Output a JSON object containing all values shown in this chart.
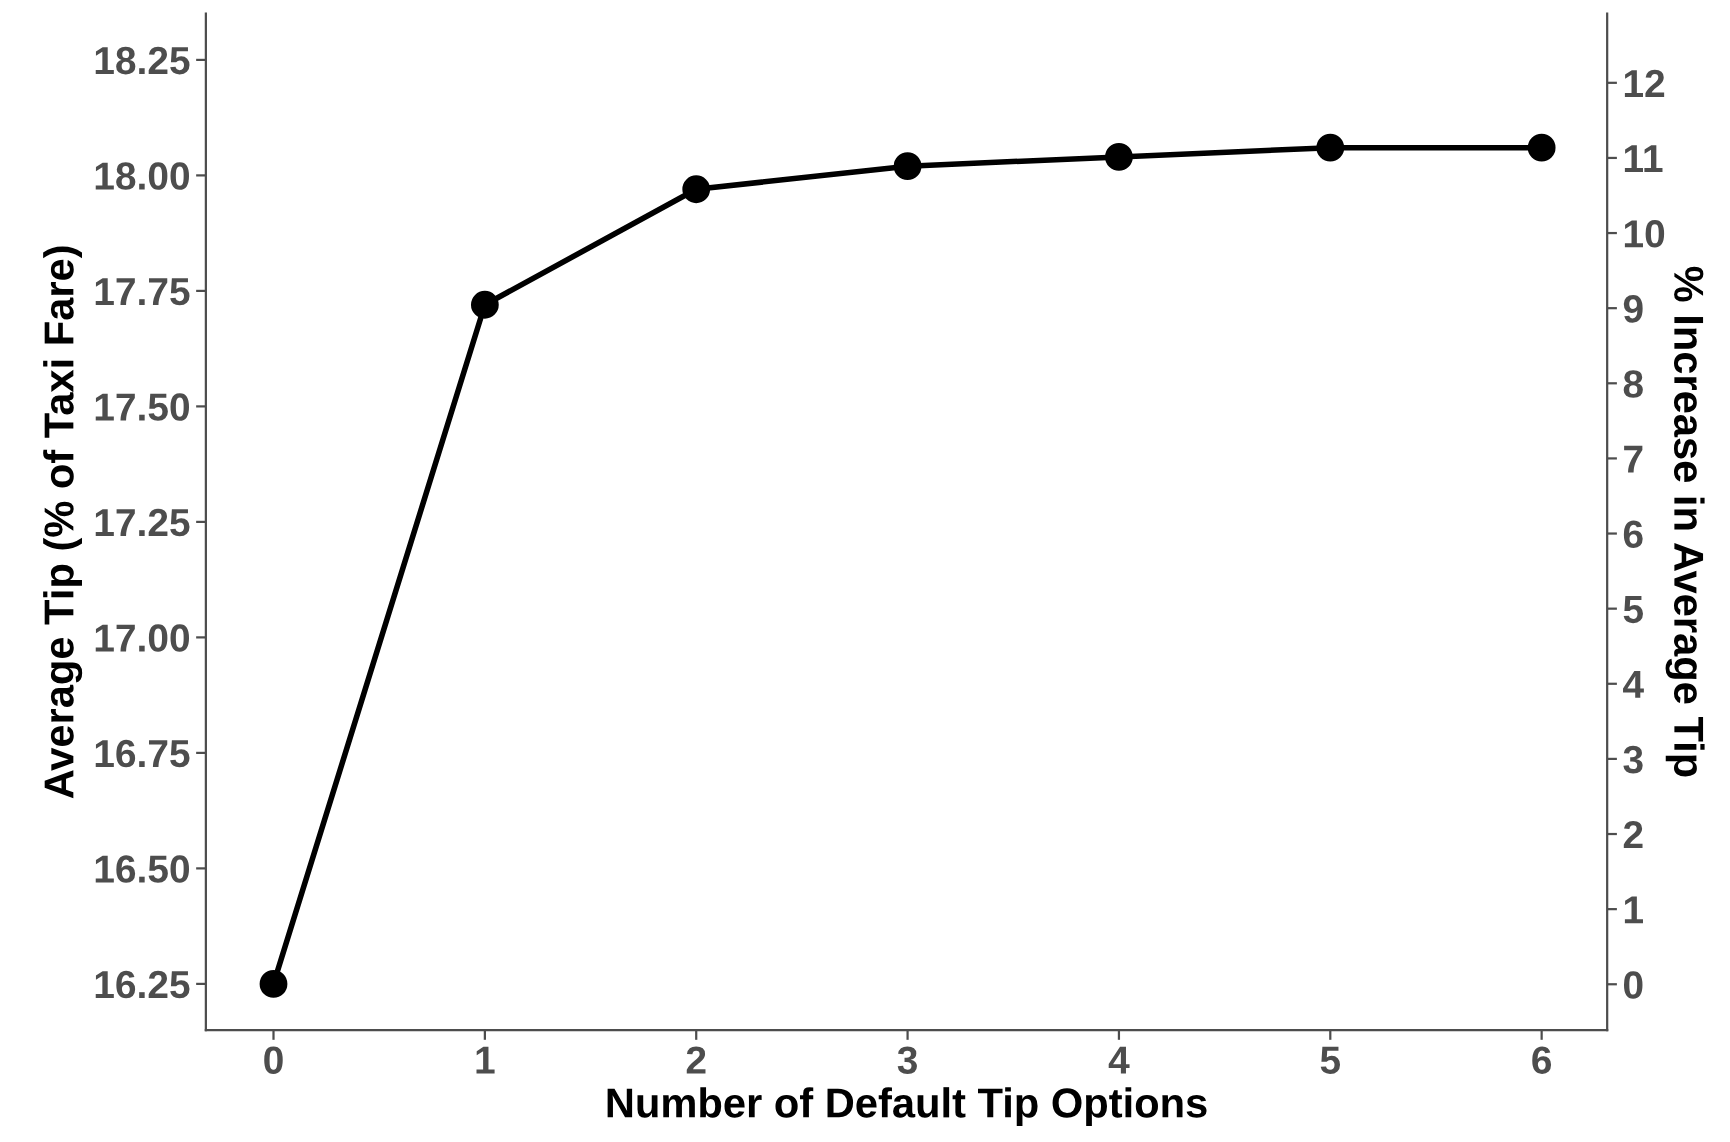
{
  "chart_data": {
    "type": "line",
    "xlabel": "Number of Default Tip Options",
    "ylabel": "Average Tip (% of Taxi Fare)",
    "y2label": "% Increase in Average Tip",
    "x": [
      0,
      1,
      2,
      3,
      4,
      5,
      6
    ],
    "series": [
      {
        "color": "#000000",
        "values": [
          16.25,
          17.72,
          17.97,
          18.02,
          18.04,
          18.06,
          18.06
        ]
      }
    ],
    "xlim": [
      -0.32,
      6.31
    ],
    "xticks": [
      0,
      1,
      2,
      3,
      4,
      5,
      6
    ],
    "ylim": [
      16.15,
      18.35
    ],
    "yticks": [
      {
        "value": 16.25,
        "label": "16.25"
      },
      {
        "value": 16.5,
        "label": "16.50"
      },
      {
        "value": 16.75,
        "label": "16.75"
      },
      {
        "value": 17.0,
        "label": "17.00"
      },
      {
        "value": 17.25,
        "label": "17.25"
      },
      {
        "value": 17.5,
        "label": "17.50"
      },
      {
        "value": 17.75,
        "label": "17.75"
      },
      {
        "value": 18.0,
        "label": "18.00"
      },
      {
        "value": 18.25,
        "label": "18.25"
      }
    ],
    "y2lim": [
      -0.61,
      12.92
    ],
    "y2ticks": [
      0,
      1,
      2,
      3,
      4,
      5,
      6,
      7,
      8,
      9,
      10,
      11,
      12
    ],
    "grid": false,
    "legend": false,
    "marker": "circle",
    "line_style": "solid"
  }
}
